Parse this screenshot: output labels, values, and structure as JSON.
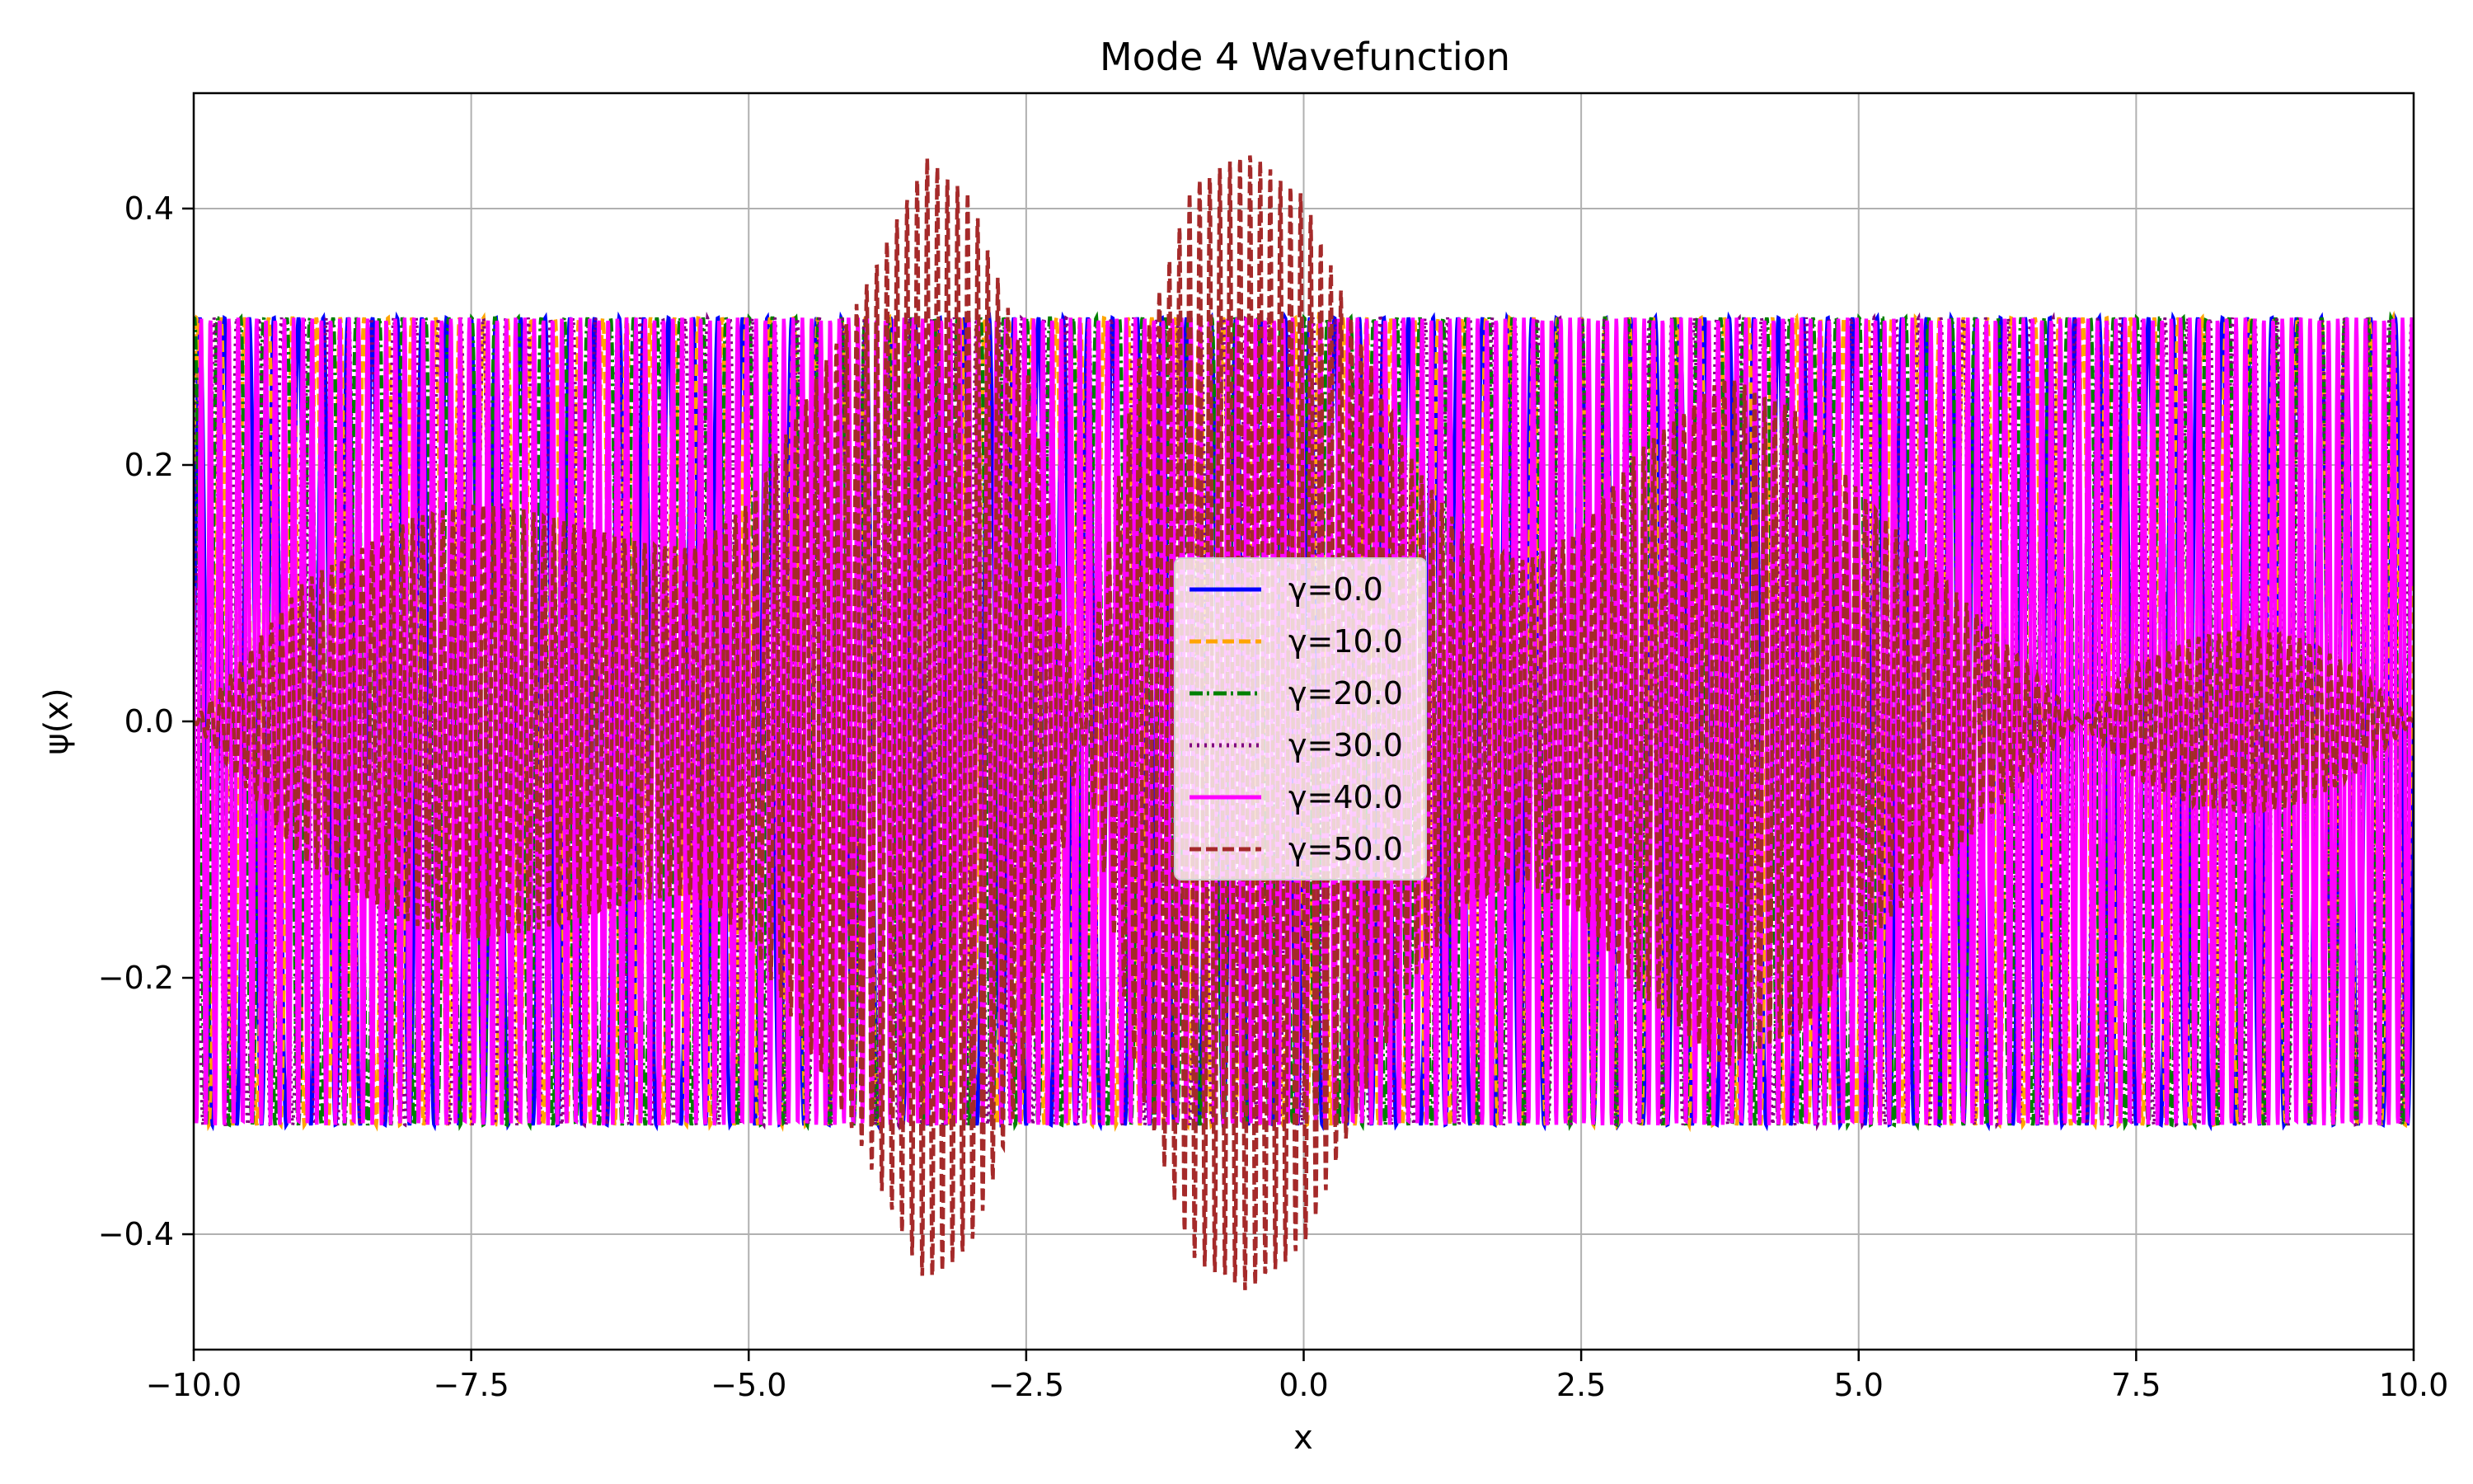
{
  "chart_data": {
    "type": "line",
    "title": "Mode 4 Wavefunction",
    "xlabel": "x",
    "ylabel": "ψ(x)",
    "xlim": [
      -10,
      10
    ],
    "ylim": [
      -0.49,
      0.49
    ],
    "x_ticks": [
      -10.0,
      -7.5,
      -5.0,
      -2.5,
      0.0,
      2.5,
      5.0,
      7.5,
      10.0
    ],
    "x_tick_labels": [
      "−10.0",
      "−7.5",
      "−5.0",
      "−2.5",
      "0.0",
      "2.5",
      "5.0",
      "7.5",
      "10.0"
    ],
    "y_ticks": [
      -0.4,
      -0.2,
      0.0,
      0.2,
      0.4
    ],
    "y_tick_labels": [
      "−0.4",
      "−0.2",
      "0.0",
      "0.2",
      "0.4"
    ],
    "grid": true,
    "legend_position": "center",
    "series": [
      {
        "name": "γ=0.0",
        "color": "#0000ff",
        "style": "solid",
        "envelope": {
          "x": [
            -10,
            10
          ],
          "y": [
            0.315,
            0.315
          ]
        },
        "oscillation_cycles": 90
      },
      {
        "name": "γ=10.0",
        "color": "#ffa500",
        "style": "dashed",
        "envelope": {
          "x": [
            -10,
            10
          ],
          "y": [
            0.315,
            0.315
          ]
        },
        "oscillation_cycles": 93
      },
      {
        "name": "γ=20.0",
        "color": "#008000",
        "style": "dashdot",
        "envelope": {
          "x": [
            -10,
            10
          ],
          "y": [
            0.315,
            0.315
          ]
        },
        "oscillation_cycles": 96
      },
      {
        "name": "γ=30.0",
        "color": "#800080",
        "style": "dotted",
        "envelope": {
          "x": [
            -10,
            10
          ],
          "y": [
            0.315,
            0.315
          ]
        },
        "oscillation_cycles": 99
      },
      {
        "name": "γ=40.0",
        "color": "#ff00ff",
        "style": "solid",
        "envelope": {
          "x": [
            -10,
            10
          ],
          "y": [
            0.315,
            0.315
          ]
        },
        "oscillation_cycles": 240
      },
      {
        "name": "γ=50.0",
        "color": "#a52a2a",
        "style": "dashed",
        "envelope": {
          "x": [
            -10,
            -9,
            -8,
            -7.5,
            -7,
            -6,
            -5.5,
            -5,
            -4,
            -3.4,
            -3,
            -2.5,
            -2,
            -1.5,
            -1,
            -0.5,
            0,
            0.5,
            1,
            1.5,
            2,
            2.5,
            3,
            3.8,
            4.5,
            5,
            6,
            7,
            7.5,
            8,
            8.5,
            9,
            9.5,
            10
          ],
          "y": [
            0,
            0.11,
            0.16,
            0.17,
            0.165,
            0.14,
            0.135,
            0.17,
            0.33,
            0.44,
            0.41,
            0.28,
            0.01,
            0.28,
            0.42,
            0.445,
            0.41,
            0.3,
            0.2,
            0.14,
            0.125,
            0.15,
            0.21,
            0.27,
            0.24,
            0.18,
            0.09,
            0,
            0.045,
            0.065,
            0.072,
            0.065,
            0.04,
            0
          ]
        },
        "oscillation_cycles": 220
      }
    ]
  }
}
